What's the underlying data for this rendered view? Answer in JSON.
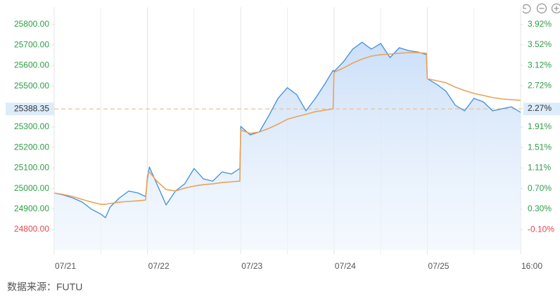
{
  "chart_data": {
    "type": "line",
    "source": "数据来源：FUTU",
    "x": [
      0,
      0.1,
      0.2,
      0.3,
      0.4,
      0.5,
      0.55,
      0.6,
      0.7,
      0.8,
      0.9,
      0.98,
      1.0,
      1.02,
      1.1,
      1.2,
      1.3,
      1.4,
      1.5,
      1.6,
      1.7,
      1.8,
      1.9,
      1.99,
      2.0,
      2.1,
      2.2,
      2.3,
      2.4,
      2.5,
      2.6,
      2.7,
      2.8,
      2.9,
      2.99,
      3.0,
      3.1,
      3.2,
      3.3,
      3.4,
      3.5,
      3.6,
      3.7,
      3.8,
      3.9,
      3.99,
      4.0,
      4.1,
      4.2,
      4.3,
      4.4,
      4.5,
      4.6,
      4.7,
      4.8,
      4.9,
      5.0
    ],
    "series": [
      {
        "color": "#3d8fe0",
        "values": [
          24978,
          24968,
          24954,
          24934,
          24899,
          24875,
          24858,
          24910,
          24954,
          24988,
          24978,
          24961,
          25047,
          25105,
          25023,
          24920,
          24988,
          25023,
          25098,
          25047,
          25036,
          25081,
          25071,
          25098,
          25303,
          25262,
          25276,
          25355,
          25440,
          25492,
          25458,
          25379,
          25440,
          25509,
          25577,
          25571,
          25618,
          25680,
          25714,
          25680,
          25708,
          25639,
          25687,
          25673,
          25666,
          25653,
          25536,
          25509,
          25475,
          25406,
          25379,
          25440,
          25423,
          25379,
          25389,
          25399,
          25372
        ]
      },
      {
        "color": "#e9a35a",
        "values": [
          24978,
          24971,
          24961,
          24947,
          24934,
          24923,
          24923,
          24927,
          24934,
          24937,
          24940,
          24944,
          25064,
          25081,
          25036,
          24995,
          24988,
          25002,
          25012,
          25019,
          25023,
          25029,
          25033,
          25036,
          25286,
          25269,
          25276,
          25293,
          25314,
          25338,
          25351,
          25362,
          25375,
          25382,
          25389,
          25567,
          25588,
          25612,
          25632,
          25646,
          25653,
          25656,
          25660,
          25663,
          25663,
          25660,
          25536,
          25526,
          25516,
          25495,
          25478,
          25464,
          25454,
          25444,
          25437,
          25434,
          25430
        ]
      }
    ],
    "xlim": [
      0,
      5
    ],
    "xticks": [
      {
        "value": 0,
        "label": "07/21"
      },
      {
        "value": 1,
        "label": "07/22"
      },
      {
        "value": 2,
        "label": "07/23"
      },
      {
        "value": 3,
        "label": "07/24"
      },
      {
        "value": 4,
        "label": "07/25"
      },
      {
        "value": 5,
        "label": "16:00"
      }
    ],
    "ylim": [
      24700,
      25850
    ],
    "yticks": [
      {
        "value": 24800,
        "label": "24800.00"
      },
      {
        "value": 24900,
        "label": "24900.00"
      },
      {
        "value": 25000,
        "label": "25000.00"
      },
      {
        "value": 25100,
        "label": "25100.00"
      },
      {
        "value": 25200,
        "label": "25200.00"
      },
      {
        "value": 25300,
        "label": "25300.00"
      },
      {
        "value": 25500,
        "label": "25500.00"
      },
      {
        "value": 25600,
        "label": "25600.00"
      },
      {
        "value": 25700,
        "label": "25700.00"
      },
      {
        "value": 25800,
        "label": "25800.00"
      }
    ],
    "reference_line": {
      "value": 25388.35,
      "label": "25388.35",
      "color": "#f0b98a"
    },
    "y2lim": [
      -0.5,
      4.12
    ],
    "y2ticks": [
      {
        "value": -0.1,
        "label": "-0.10%"
      },
      {
        "value": 0.3,
        "label": "0.30%"
      },
      {
        "value": 0.7,
        "label": "0.70%"
      },
      {
        "value": 1.11,
        "label": "1.11%"
      },
      {
        "value": 1.51,
        "label": "1.51%"
      },
      {
        "value": 1.91,
        "label": "1.91%"
      },
      {
        "value": 2.27,
        "label": "2.27%"
      },
      {
        "value": 2.72,
        "label": "2.72%"
      },
      {
        "value": 3.12,
        "label": "3.12%"
      },
      {
        "value": 3.52,
        "label": "3.52%"
      },
      {
        "value": 3.92,
        "label": "3.92%"
      }
    ],
    "up_color": "#2e9d45",
    "down_color": "#e5484d",
    "grid": true
  }
}
